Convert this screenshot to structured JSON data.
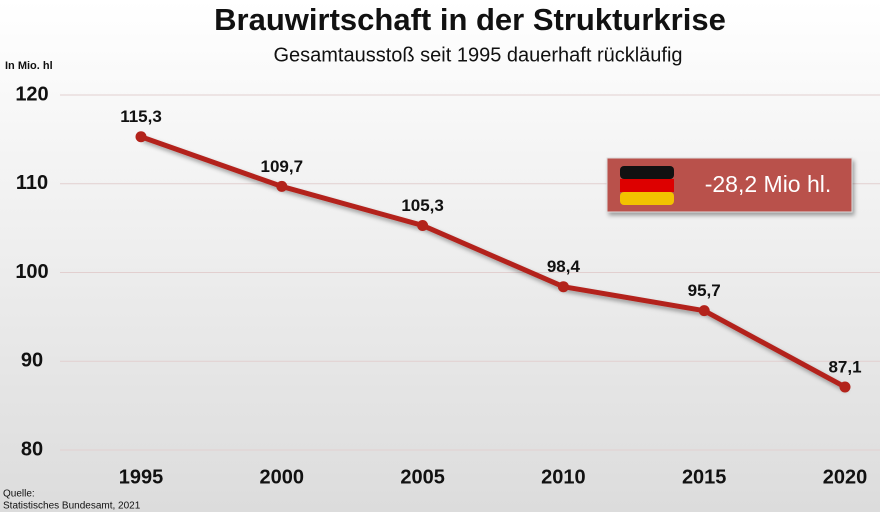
{
  "chart_data": {
    "type": "line",
    "title": "Brauwirtschaft in der Strukturkrise",
    "subtitle": "Gesamtausstoß seit 1995 dauerhaft rückläufig",
    "y_label": "In Mio. hl",
    "x": [
      1995,
      2000,
      2005,
      2010,
      2015,
      2020
    ],
    "values": [
      115.3,
      109.7,
      105.3,
      98.4,
      95.7,
      87.1
    ],
    "value_labels": [
      "115,3",
      "109,7",
      "105,3",
      "98,4",
      "95,7",
      "87,1"
    ],
    "color": "#b3231b",
    "xlim": [
      1995,
      2020
    ],
    "xticks": [
      1995,
      2000,
      2005,
      2010,
      2015,
      2020
    ],
    "ylim": [
      80,
      120
    ],
    "yticks": [
      80,
      90,
      100,
      110,
      120
    ],
    "grid": true,
    "annotation": "-28,2 Mio hl.",
    "source": [
      "Quelle:",
      "Statistisches Bundesamt, 2021"
    ]
  }
}
